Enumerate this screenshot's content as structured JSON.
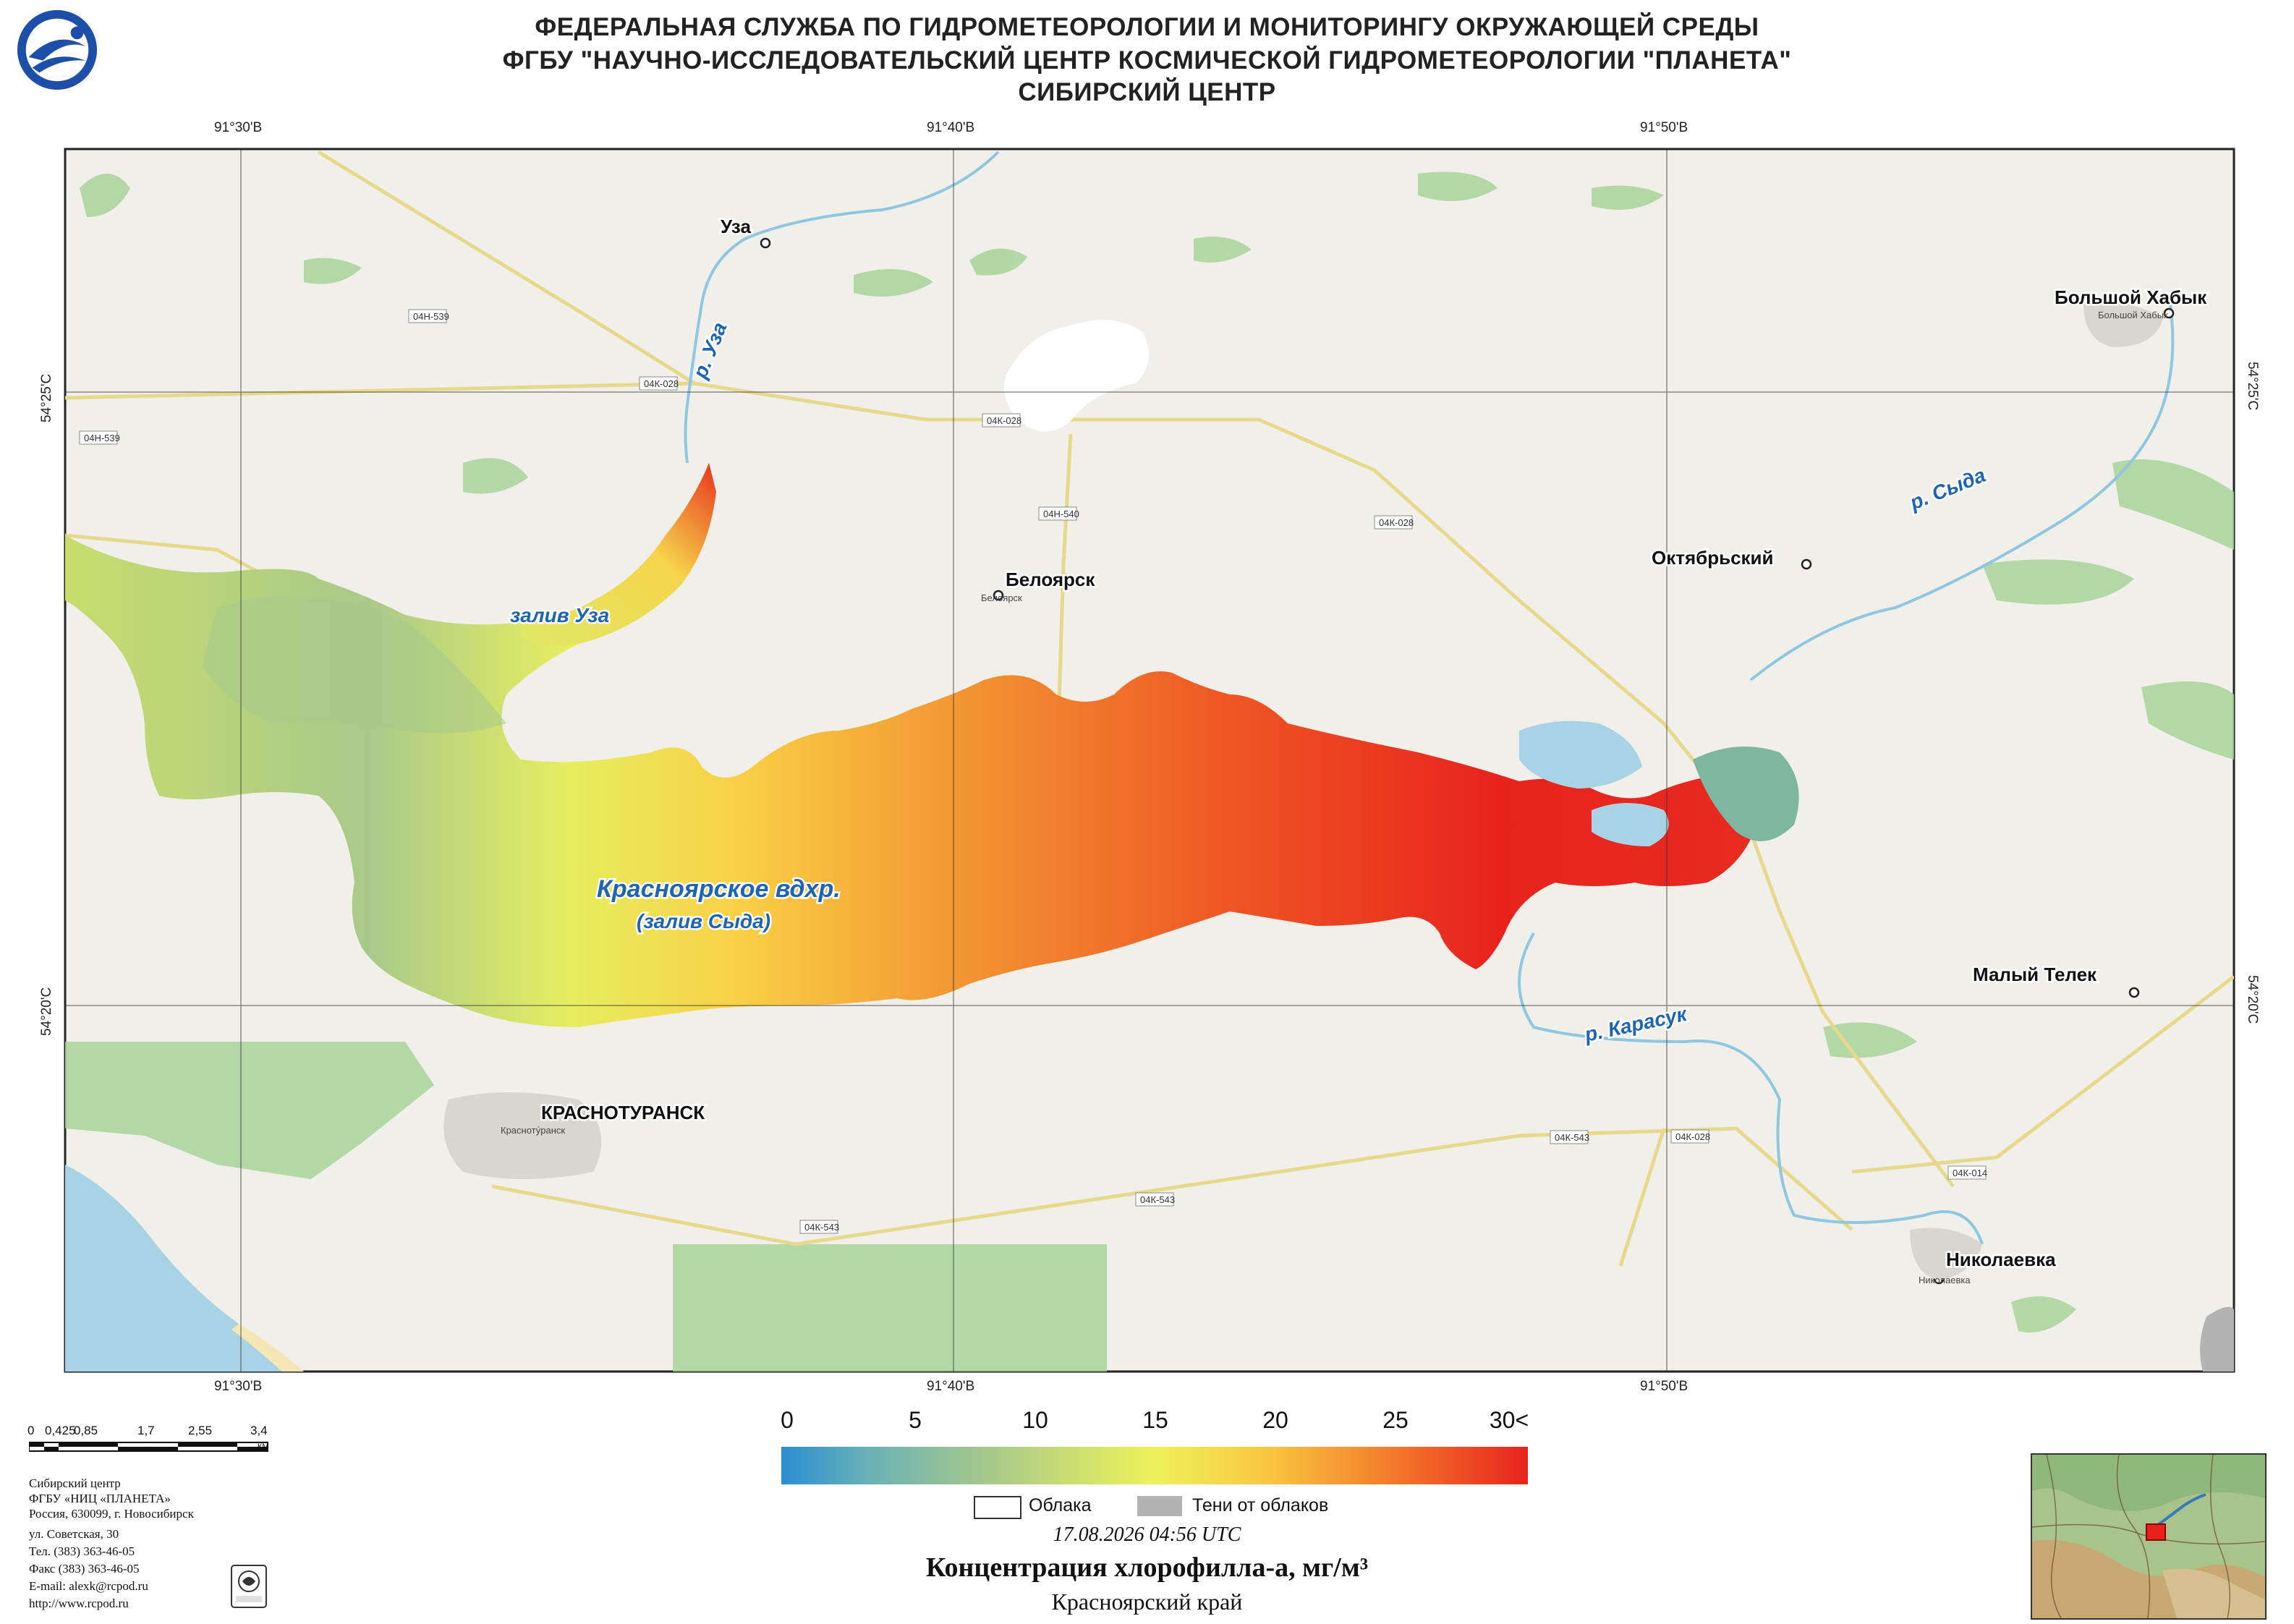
{
  "header": {
    "line1": "ФЕДЕРАЛЬНАЯ СЛУЖБА ПО ГИДРОМЕТЕОРОЛОГИИ И МОНИТОРИНГУ ОКРУЖАЮЩЕЙ СРЕДЫ",
    "line2": "ФГБУ \"НАУЧНО-ИССЛЕДОВАТЕЛЬСКИЙ ЦЕНТР КОСМИЧЕСКОЙ ГИДРОМЕТЕОРОЛОГИИ \"ПЛАНЕТА\"",
    "line3": "СИБИРСКИЙ ЦЕНТР"
  },
  "grid": {
    "lon_labels": [
      "91°30'В",
      "91°40'В",
      "91°50'В"
    ],
    "lat_labels": [
      "54°25'С",
      "54°20'С"
    ]
  },
  "places": {
    "uza": "Уза",
    "beloyarsk": "Белоярск",
    "beloyarsk_small": "Белоярск",
    "oktyabrsky": "Октябрьский",
    "bolshoy_khabyk": "Большой Хабык",
    "bolshoy_khabyk_small": "Большой Хабык",
    "maly_telek": "Малый Телек",
    "krasnoturansk": "КРАСНОТУРАНСК",
    "krasnoturansk_small": "Красноту́ранск",
    "nikolaevka": "Николаевка",
    "nikolaevka_small": "Николаевка"
  },
  "water_labels": {
    "river_uza": "р. Уза",
    "bay_uza": "залив Уза",
    "river_syda": "р. Сыда",
    "reservoir": "Красноярское вдхр.",
    "bay_syda": "(залив Сыда)",
    "river_karasuk": "р. Карасук"
  },
  "roads": {
    "r1": "04Н-539",
    "r2": "04Н-539",
    "r3": "04К-028",
    "r4": "04К-028",
    "r5": "04К-028",
    "r6": "04Н-540",
    "r7": "04К-543",
    "r8": "04К-543",
    "r9": "04К-543",
    "r10": "04К-028",
    "r11": "04К-014"
  },
  "scale_bar": {
    "labels": [
      "0",
      "0,425",
      "0,85",
      "1,7",
      "2,55",
      "3,4"
    ],
    "unit": "КМ"
  },
  "organization": {
    "lines": [
      "Сибирский центр",
      "ФГБУ «НИЦ «ПЛАНЕТА»",
      "Россия, 630099, г. Новосибирск",
      "ул. Советская, 30",
      "Тел. (383) 363-46-05",
      "Факс (383) 363-46-05",
      "E-mail: alexk@rcpod.ru",
      "http://www.rcpod.ru"
    ],
    "iso_badge": "ISO 9001"
  },
  "legend": {
    "ticks": [
      "0",
      "5",
      "10",
      "15",
      "20",
      "25",
      "30<"
    ],
    "gradient_colors": [
      "#2b8fd3",
      "#a8c98a",
      "#eef25a",
      "#f9c33e",
      "#f3792a",
      "#e8231e"
    ],
    "clouds_label": "Облака",
    "shadows_label": "Тени от облаков",
    "clouds_color": "#ffffff",
    "shadows_color": "#b3b3b3"
  },
  "footer": {
    "date": "17.08.2026  04:56 UTC",
    "title": "Концентрация хлорофилла-а, мг/м³",
    "region": "Красноярский край"
  }
}
